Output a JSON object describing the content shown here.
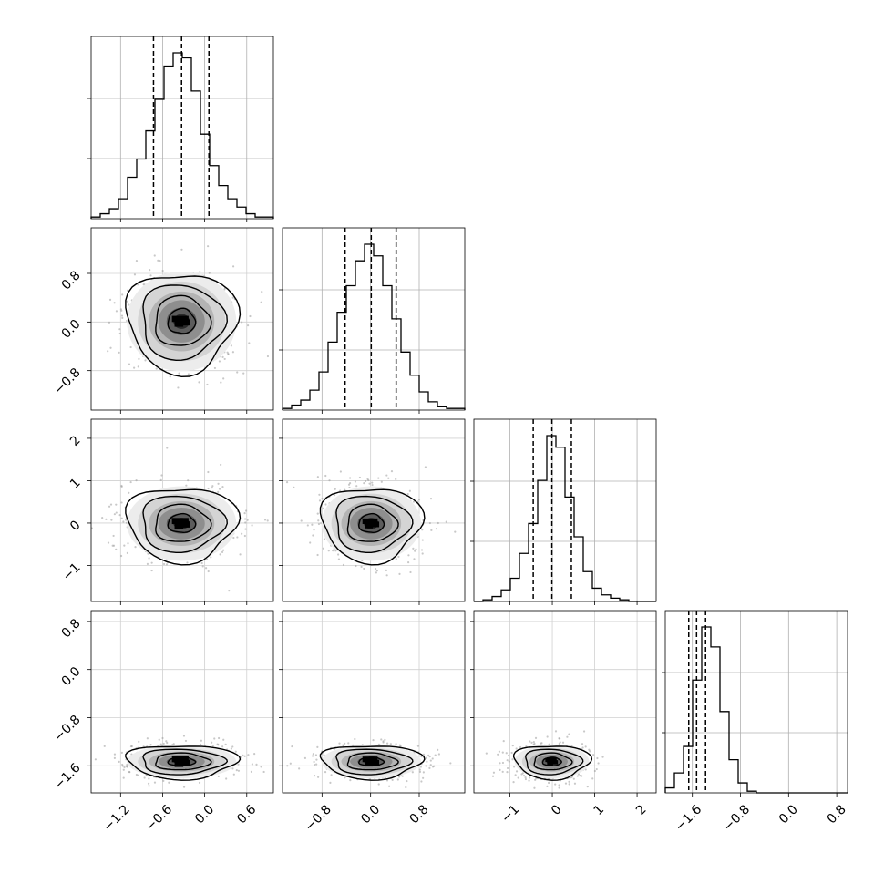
{
  "chart_data": {
    "type": "corner",
    "title": "",
    "grid": true,
    "n_params": 4,
    "hist_bins": 20,
    "params": [
      {
        "index": 0,
        "label": "",
        "range": [
          -1.62,
          0.98
        ],
        "ticks": [
          -1.2,
          -0.6,
          0.0,
          0.6
        ],
        "tick_labels": [
          "−1.2",
          "−0.6",
          "0.0",
          "0.6"
        ],
        "quantiles": [
          -0.73,
          -0.33,
          0.06
        ],
        "mean": -0.33,
        "std": 0.39
      },
      {
        "index": 1,
        "label": "",
        "range": [
          -1.45,
          1.55
        ],
        "ticks": [
          -0.8,
          0.0,
          0.8
        ],
        "tick_labels": [
          "−0.8",
          "0.0",
          "0.8"
        ],
        "quantiles": [
          -0.42,
          0.01,
          0.42
        ],
        "mean": 0.01,
        "std": 0.41
      },
      {
        "index": 2,
        "label": "",
        "range": [
          -1.85,
          2.45
        ],
        "ticks": [
          -1,
          0,
          1,
          2
        ],
        "tick_labels": [
          "−1",
          "0",
          "1",
          "2"
        ],
        "quantiles": [
          -0.45,
          -0.01,
          0.45
        ],
        "mean": -0.01,
        "std": 0.44
      },
      {
        "index": 3,
        "label": "",
        "range": [
          -2.05,
          0.98
        ],
        "ticks": [
          -1.6,
          -0.8,
          0.0,
          0.8
        ],
        "tick_labels": [
          "−1.6",
          "−0.8",
          "0.0",
          "0.8"
        ],
        "quantiles": [
          -1.66,
          -1.53,
          -1.38
        ],
        "mean": -1.53,
        "std": 0.14
      }
    ],
    "histograms": [
      {
        "param": 0,
        "counts": [
          1,
          3,
          6,
          12,
          25,
          36,
          53,
          72,
          92,
          100,
          97,
          77,
          51,
          32,
          20,
          12,
          7,
          3,
          1,
          1
        ]
      },
      {
        "param": 1,
        "counts": [
          1,
          3,
          6,
          12,
          23,
          41,
          59,
          75,
          90,
          100,
          93,
          75,
          55,
          35,
          21,
          11,
          5,
          2,
          1,
          1
        ]
      },
      {
        "param": 2,
        "counts": [
          0,
          1,
          3,
          7,
          14,
          29,
          47,
          73,
          100,
          93,
          63,
          39,
          18,
          8,
          4,
          2,
          1,
          0,
          0,
          0
        ]
      },
      {
        "param": 3,
        "counts": [
          3,
          12,
          28,
          68,
          100,
          88,
          49,
          20,
          6,
          1,
          0,
          0,
          0,
          0,
          0,
          0,
          0,
          0,
          0,
          0
        ]
      }
    ],
    "pair_distributions": [
      {
        "x_param": 0,
        "y_param": 1,
        "center": [
          -0.33,
          0.01
        ],
        "spread": [
          0.39,
          0.41
        ]
      },
      {
        "x_param": 0,
        "y_param": 2,
        "center": [
          -0.33,
          -0.01
        ],
        "spread": [
          0.39,
          0.44
        ]
      },
      {
        "x_param": 1,
        "y_param": 2,
        "center": [
          0.01,
          -0.01
        ],
        "spread": [
          0.41,
          0.44
        ]
      },
      {
        "x_param": 0,
        "y_param": 3,
        "center": [
          -0.33,
          -1.53
        ],
        "spread": [
          0.39,
          0.14
        ]
      },
      {
        "x_param": 1,
        "y_param": 3,
        "center": [
          0.01,
          -1.53
        ],
        "spread": [
          0.41,
          0.14
        ]
      },
      {
        "x_param": 2,
        "y_param": 3,
        "center": [
          -0.01,
          -1.53
        ],
        "spread": [
          0.44,
          0.14
        ]
      }
    ],
    "contour_sigma_levels": [
      0.5,
      1.0,
      1.5,
      2.0
    ]
  }
}
